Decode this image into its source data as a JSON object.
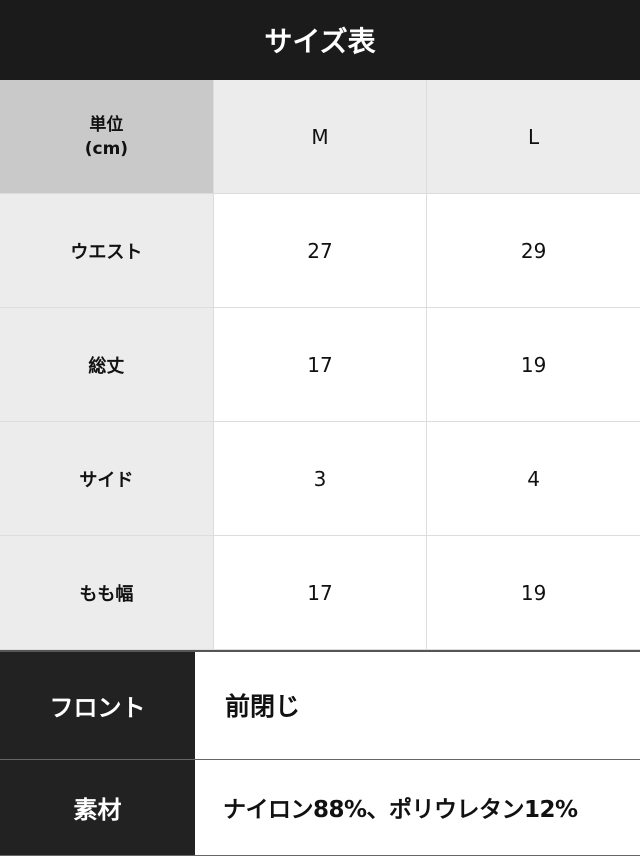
{
  "title": "サイズ表",
  "size_table": {
    "unit_label": "単位",
    "unit": "(cm)",
    "columns": [
      "M",
      "L"
    ],
    "rows": [
      {
        "label": "ウエスト",
        "values": [
          "27",
          "29"
        ]
      },
      {
        "label": "総丈",
        "values": [
          "17",
          "19"
        ]
      },
      {
        "label": "サイド",
        "values": [
          "3",
          "4"
        ]
      },
      {
        "label": "もも幅",
        "values": [
          "17",
          "19"
        ]
      }
    ]
  },
  "info": [
    {
      "label": "フロント",
      "value": "前閉じ"
    },
    {
      "label": "素材",
      "value": "ナイロン88%、ポリウレタン12%"
    }
  ]
}
